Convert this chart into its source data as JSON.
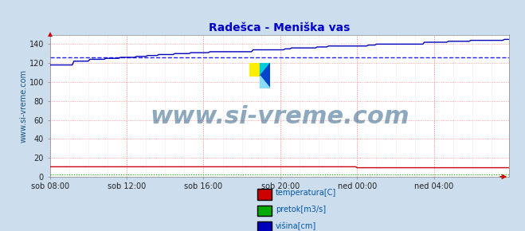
{
  "title": "Radešca - Meniška vas",
  "title_color": "#0000cc",
  "title_fontsize": 10,
  "bg_color": "#ccdded",
  "plot_bg_color": "#ffffff",
  "watermark_text": "www.si-vreme.com",
  "watermark_color": "#1a5580",
  "watermark_fontsize": 22,
  "ylabel_text": "www.si-vreme.com",
  "ylabel_color": "#1a5580",
  "ylabel_fontsize": 7,
  "xlim_start": 0,
  "xlim_end": 287,
  "ylim": [
    0,
    150
  ],
  "yticks": [
    0,
    20,
    40,
    60,
    80,
    100,
    120,
    140
  ],
  "xtick_labels": [
    "sob 08:00",
    "sob 12:00",
    "sob 16:00",
    "sob 20:00",
    "ned 00:00",
    "ned 04:00"
  ],
  "xtick_positions": [
    0,
    48,
    96,
    144,
    192,
    240
  ],
  "grid_major_color": "#ff8888",
  "grid_minor_color": "#ffcccc",
  "dashed_hline_value": 126,
  "dashed_hline_color": "#2222ff",
  "temperatura_color": "#cc0000",
  "pretok_color": "#00aa00",
  "visina_color": "#0000bb",
  "visina_start": 118,
  "visina_end": 145,
  "temperatura_flat": 10.5,
  "temperatura_drop_start": 192,
  "temperatura_drop": 9.5,
  "pretok_flat": 2.5,
  "legend_labels": [
    "temperatura[C]",
    "pretok[m3/s]",
    "višina[cm]"
  ],
  "legend_colors": [
    "#cc0000",
    "#00aa00",
    "#0000bb"
  ],
  "logo_colors": [
    "#ffee00",
    "#00ccdd",
    "#0044cc",
    "#88ddff"
  ],
  "arrow_color": "#cc0000"
}
